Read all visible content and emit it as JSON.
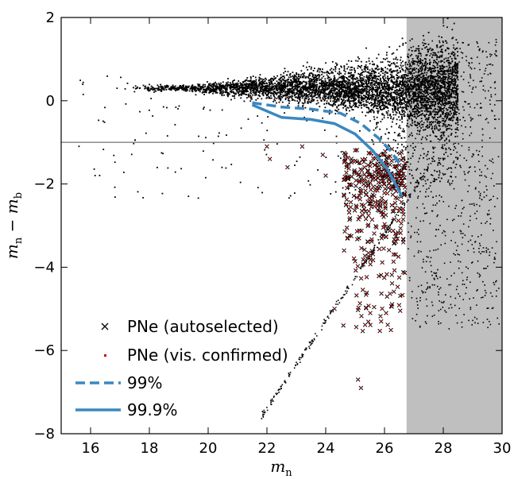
{
  "chart_data": {
    "type": "scatter",
    "xlabel": "m_n",
    "ylabel": "m_n − m_b",
    "xlim": [
      15,
      30
    ],
    "ylim": [
      -8,
      2
    ],
    "xticks": [
      16,
      18,
      20,
      22,
      24,
      26,
      28,
      30
    ],
    "yticks": [
      -8,
      -6,
      -4,
      -2,
      0,
      2
    ],
    "xtick_labels": [
      "16",
      "18",
      "20",
      "22",
      "24",
      "26",
      "28",
      "30"
    ],
    "ytick_labels": [
      "−8",
      "−6",
      "−4",
      "−2",
      "0",
      "2"
    ],
    "grid": false,
    "shaded_region": {
      "x_from": 26.75,
      "x_to": 30,
      "color": "#bfbfbf"
    },
    "reference_line": {
      "y": -1.0,
      "color": "#808080"
    },
    "legend_placement": "bottom-left",
    "series": [
      {
        "name": "PNe (autoselected)",
        "marker": "x",
        "color": "#000000"
      },
      {
        "name": "PNe (vis. confirmed)",
        "marker": "dot",
        "color": "#d00000"
      },
      {
        "name": "99%",
        "style": "dashed",
        "color": "#3a88c0",
        "x": [
          21.5,
          22.5,
          23.5,
          24.5,
          25.2,
          25.8,
          26.2,
          26.6
        ],
        "y": [
          -0.05,
          -0.15,
          -0.2,
          -0.3,
          -0.55,
          -0.9,
          -1.2,
          -1.6
        ]
      },
      {
        "name": "99.9%",
        "style": "solid",
        "color": "#3a88c0",
        "x": [
          21.5,
          22.5,
          23.5,
          24.3,
          25.0,
          25.6,
          26.1,
          26.6
        ],
        "y": [
          -0.1,
          -0.4,
          -0.45,
          -0.55,
          -0.8,
          -1.2,
          -1.65,
          -2.3
        ]
      }
    ]
  }
}
